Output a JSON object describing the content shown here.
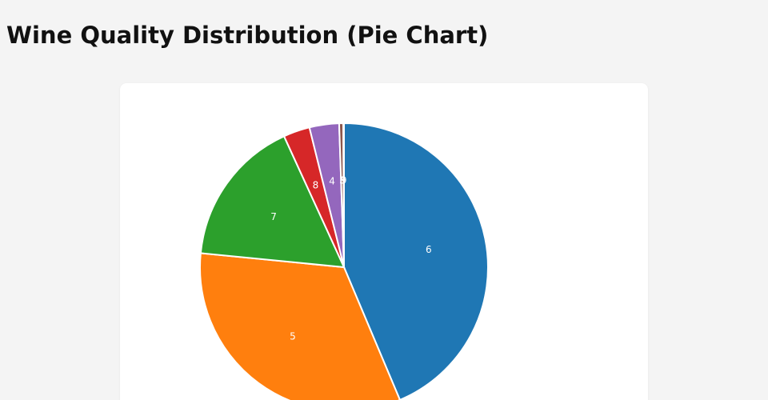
{
  "page": {
    "title": "Wine Quality Distribution (Pie Chart)"
  },
  "chart_data": {
    "type": "pie",
    "categories": [
      "6",
      "5",
      "7",
      "8",
      "4",
      "3",
      "9"
    ],
    "values": [
      2836,
      2138,
      1079,
      193,
      216,
      30,
      5
    ],
    "colors": [
      "#1f77b4",
      "#ff7f0e",
      "#2ca02c",
      "#d62728",
      "#9467bd",
      "#8c564b",
      "#e377c2"
    ],
    "start_angle_deg": 0,
    "direction": "clockwise",
    "title": "",
    "legend": "none"
  }
}
